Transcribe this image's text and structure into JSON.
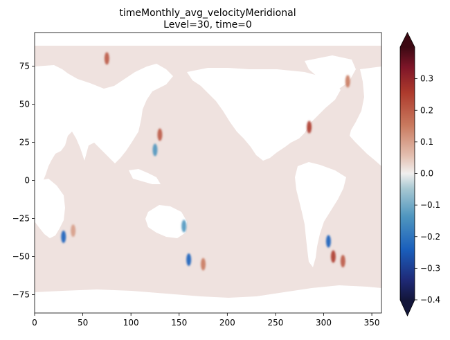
{
  "chart_data": {
    "type": "heatmap",
    "title": "timeMonthly_avg_velocityMeridional",
    "subtitle": "Level=30, time=0",
    "xlabel": "",
    "ylabel": "",
    "xlim": [
      0,
      360
    ],
    "ylim": [
      -87,
      97
    ],
    "x_ticks": [
      0,
      50,
      100,
      150,
      200,
      250,
      300,
      350
    ],
    "y_ticks": [
      -75,
      -50,
      -25,
      0,
      25,
      50,
      75
    ],
    "colorbar": {
      "vmin": -0.4,
      "vmax": 0.4,
      "ticks": [
        0.3,
        0.2,
        0.1,
        0.0,
        -0.1,
        -0.2,
        -0.3,
        -0.4
      ],
      "tick_labels": [
        "0.3",
        "0.2",
        "0.1",
        "0.0",
        "−0.1",
        "−0.2",
        "−0.3",
        "−0.4"
      ],
      "extend": "both",
      "colormap": "balance"
    },
    "ocean_background_value": 0.02,
    "features": [
      {
        "lon": 30,
        "lat": -37,
        "value": -0.3
      },
      {
        "lon": 40,
        "lat": -33,
        "value": 0.15
      },
      {
        "lon": 75,
        "lat": 80,
        "value": 0.25
      },
      {
        "lon": 125,
        "lat": 20,
        "value": -0.2
      },
      {
        "lon": 130,
        "lat": 30,
        "value": 0.25
      },
      {
        "lon": 155,
        "lat": -30,
        "value": -0.2
      },
      {
        "lon": 160,
        "lat": -52,
        "value": -0.3
      },
      {
        "lon": 175,
        "lat": -55,
        "value": 0.2
      },
      {
        "lon": 285,
        "lat": 35,
        "value": 0.3
      },
      {
        "lon": 305,
        "lat": -40,
        "value": -0.3
      },
      {
        "lon": 310,
        "lat": -50,
        "value": 0.3
      },
      {
        "lon": 320,
        "lat": -53,
        "value": 0.25
      },
      {
        "lon": 325,
        "lat": 65,
        "value": 0.2
      }
    ]
  }
}
